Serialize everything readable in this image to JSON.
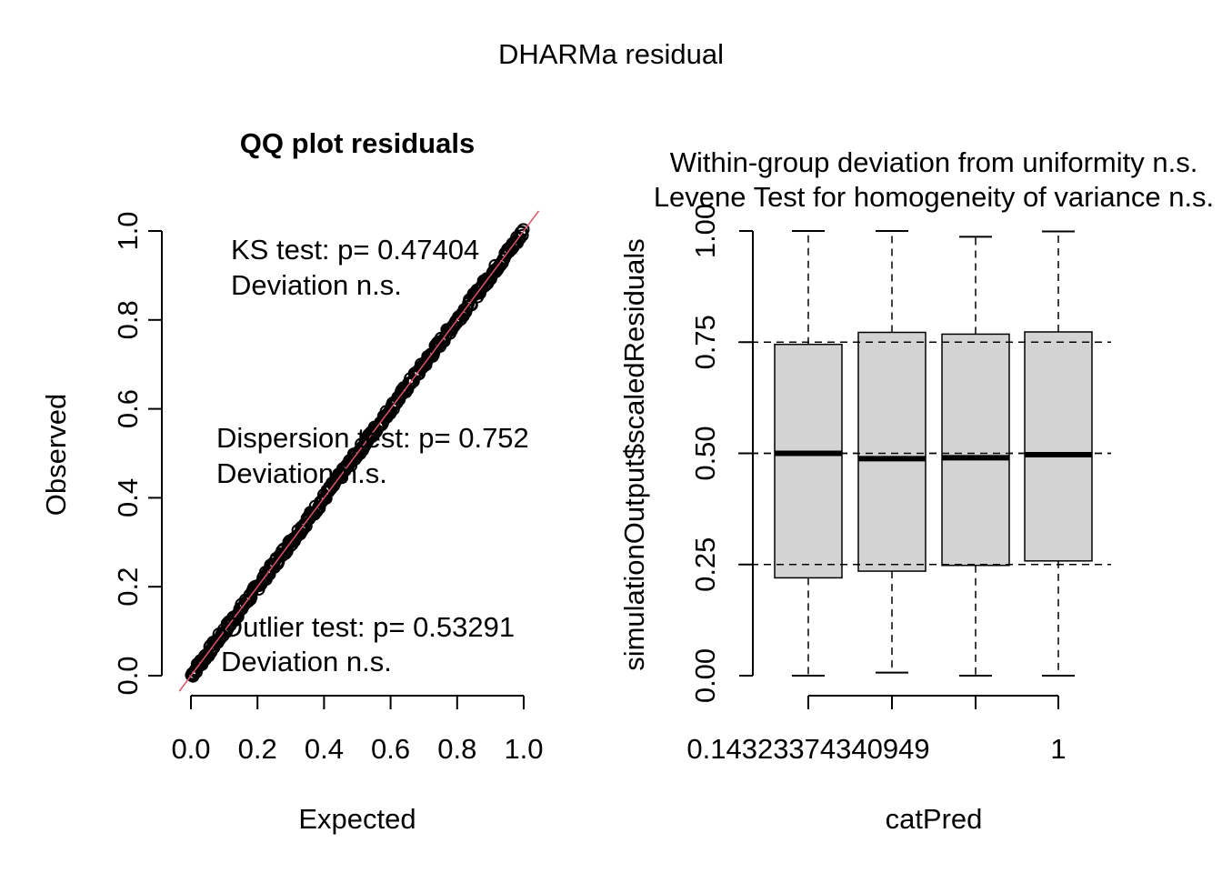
{
  "main_title": "DHARMa residual",
  "chart_data": [
    {
      "type": "scatter",
      "title": "QQ plot residuals",
      "xlabel": "Expected",
      "ylabel": "Observed",
      "xlim": [
        0.0,
        1.0
      ],
      "ylim": [
        0.0,
        1.0
      ],
      "xticks": [
        "0.0",
        "0.2",
        "0.4",
        "0.6",
        "0.8",
        "1.0"
      ],
      "yticks": [
        "0.0",
        "0.2",
        "0.4",
        "0.6",
        "0.8",
        "1.0"
      ],
      "reference_line": {
        "from": [
          0,
          0
        ],
        "to": [
          1,
          1
        ],
        "color": "#DF536B"
      },
      "points_color": "#000000",
      "annotations": [
        {
          "line1": "KS test: p= 0.47404",
          "line2": "Deviation  n.s."
        },
        {
          "line1": "Dispersion test: p= 0.752",
          "line2": "Deviation  n.s."
        },
        {
          "line1": "Outlier test: p= 0.53291",
          "line2": "Deviation  n.s."
        }
      ]
    },
    {
      "type": "box",
      "title_line1": "Within-group deviation from uniformity n.s.",
      "title_line2": "Levene Test for homogeneity of variance n.s.",
      "xlabel": "catPred",
      "ylabel": "simulationOutput$scaledResiduals",
      "ylim": [
        0.0,
        1.0
      ],
      "yticks": [
        "0.00",
        "0.25",
        "0.50",
        "0.75",
        "1.00"
      ],
      "xtick_labels": [
        "0.14323374340949",
        "1"
      ],
      "hlines": [
        0.25,
        0.5,
        0.75
      ],
      "box_color": "#D3D3D3",
      "boxes": [
        {
          "min": 0.0,
          "q1": 0.22,
          "median": 0.5,
          "q3": 0.745,
          "max": 1.0
        },
        {
          "min": 0.007,
          "q1": 0.235,
          "median": 0.488,
          "q3": 0.772,
          "max": 1.0
        },
        {
          "min": 0.0,
          "q1": 0.248,
          "median": 0.49,
          "q3": 0.768,
          "max": 0.987
        },
        {
          "min": 0.0,
          "q1": 0.258,
          "median": 0.497,
          "q3": 0.773,
          "max": 0.999
        }
      ]
    }
  ]
}
